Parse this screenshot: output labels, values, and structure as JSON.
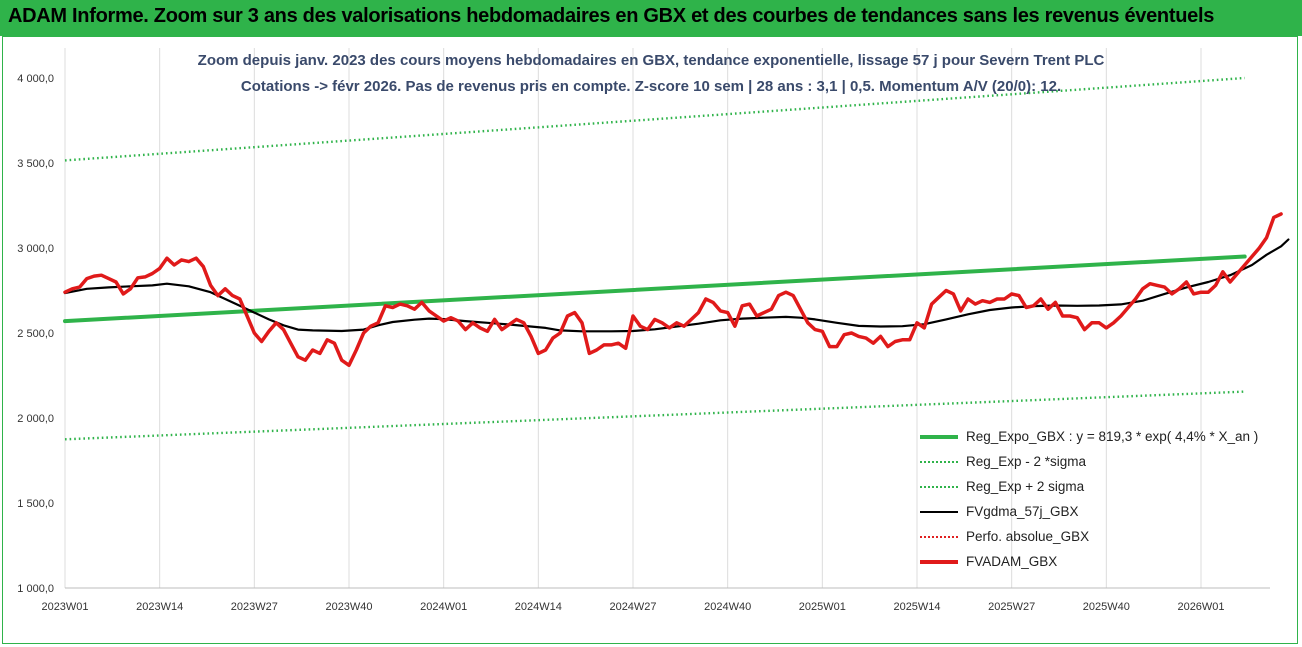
{
  "banner": {
    "title": "ADAM Informe. Zoom sur 3 ans des valorisations hebdomadaires en GBX et des courbes de tendances sans les revenus éventuels"
  },
  "chart_data": {
    "type": "line",
    "title": "Zoom depuis janv. 2023 des cours moyens hebdomadaires en GBX, tendance exponentielle, lissage 57 j pour Severn Trent PLC",
    "subtitle": "Cotations -> févr 2026. Pas de revenus pris en compte. Z-score 10 sem | 28 ans : 3,1 | 0,5. Momentum A/V (20/0): 12.",
    "xlabel": "",
    "ylabel": "",
    "ylim": [
      1000,
      4000
    ],
    "yticks": [
      "1 000,0",
      "1 500,0",
      "2 000,0",
      "2 500,0",
      "3 000,0",
      "3 500,0",
      "4 000,0"
    ],
    "xticks": [
      "2023W01",
      "2023W14",
      "2023W27",
      "2023W40",
      "2024W01",
      "2024W14",
      "2024W27",
      "2024W40",
      "2025W01",
      "2025W14",
      "2025W27",
      "2025W40",
      "2026W01"
    ],
    "grid": "vertical",
    "legend_position": "bottom-right",
    "series": [
      {
        "name": "Reg_Expo_GBX : y = 819,3 * exp( 4,4% *   X_an )",
        "color": "#2fb34a",
        "style": "solid-thick",
        "points": [
          [
            0,
            2570
          ],
          [
            162,
            2950
          ]
        ]
      },
      {
        "name": "Reg_Exp - 2 *sigma",
        "color": "#2fb34a",
        "style": "dotted",
        "points": [
          [
            0,
            1875
          ],
          [
            162,
            2155
          ]
        ]
      },
      {
        "name": "Reg_Exp + 2 sigma",
        "color": "#2fb34a",
        "style": "dotted",
        "points": [
          [
            0,
            3515
          ],
          [
            162,
            4000
          ]
        ]
      },
      {
        "name": "FVgdma_57j_GBX",
        "color": "#000000",
        "style": "solid",
        "points": [
          [
            0,
            2735
          ],
          [
            3,
            2760
          ],
          [
            6,
            2768
          ],
          [
            9,
            2775
          ],
          [
            12,
            2780
          ],
          [
            14,
            2790
          ],
          [
            17,
            2775
          ],
          [
            20,
            2740
          ],
          [
            22,
            2700
          ],
          [
            24,
            2660
          ],
          [
            26,
            2620
          ],
          [
            28,
            2580
          ],
          [
            30,
            2545
          ],
          [
            32,
            2520
          ],
          [
            34,
            2515
          ],
          [
            38,
            2512
          ],
          [
            41,
            2520
          ],
          [
            43,
            2545
          ],
          [
            45,
            2565
          ],
          [
            48,
            2578
          ],
          [
            50,
            2585
          ],
          [
            52,
            2582
          ],
          [
            55,
            2570
          ],
          [
            58,
            2560
          ],
          [
            61,
            2550
          ],
          [
            63,
            2542
          ],
          [
            66,
            2530
          ],
          [
            68,
            2515
          ],
          [
            71,
            2510
          ],
          [
            75,
            2510
          ],
          [
            78,
            2512
          ],
          [
            81,
            2522
          ],
          [
            84,
            2538
          ],
          [
            87,
            2555
          ],
          [
            90,
            2575
          ],
          [
            93,
            2585
          ],
          [
            96,
            2590
          ],
          [
            99,
            2595
          ],
          [
            101,
            2590
          ],
          [
            103,
            2580
          ],
          [
            106,
            2560
          ],
          [
            109,
            2542
          ],
          [
            112,
            2538
          ],
          [
            115,
            2540
          ],
          [
            118,
            2552
          ],
          [
            121,
            2580
          ],
          [
            124,
            2610
          ],
          [
            127,
            2635
          ],
          [
            130,
            2650
          ],
          [
            133,
            2658
          ],
          [
            136,
            2662
          ],
          [
            139,
            2660
          ],
          [
            142,
            2662
          ],
          [
            145,
            2668
          ],
          [
            148,
            2690
          ],
          [
            151,
            2730
          ],
          [
            154,
            2768
          ],
          [
            157,
            2800
          ],
          [
            160,
            2840
          ],
          [
            163,
            2900
          ],
          [
            165,
            2960
          ],
          [
            167,
            3010
          ],
          [
            168,
            3050
          ]
        ]
      },
      {
        "name": "Perfo. absolue_GBX",
        "color": "#e02020",
        "style": "dotted",
        "points": []
      },
      {
        "name": "FVADAM_GBX",
        "color": "#e01a1a",
        "style": "solid-thick",
        "points": [
          [
            0,
            2740
          ],
          [
            1,
            2760
          ],
          [
            2,
            2770
          ],
          [
            3,
            2820
          ],
          [
            4,
            2835
          ],
          [
            5,
            2840
          ],
          [
            6,
            2820
          ],
          [
            7,
            2800
          ],
          [
            8,
            2730
          ],
          [
            9,
            2760
          ],
          [
            10,
            2825
          ],
          [
            11,
            2830
          ],
          [
            12,
            2850
          ],
          [
            13,
            2880
          ],
          [
            14,
            2940
          ],
          [
            15,
            2900
          ],
          [
            16,
            2930
          ],
          [
            17,
            2920
          ],
          [
            18,
            2940
          ],
          [
            19,
            2890
          ],
          [
            20,
            2780
          ],
          [
            21,
            2720
          ],
          [
            22,
            2760
          ],
          [
            23,
            2720
          ],
          [
            24,
            2700
          ],
          [
            25,
            2600
          ],
          [
            26,
            2500
          ],
          [
            27,
            2450
          ],
          [
            28,
            2510
          ],
          [
            29,
            2560
          ],
          [
            30,
            2520
          ],
          [
            31,
            2440
          ],
          [
            32,
            2360
          ],
          [
            33,
            2340
          ],
          [
            34,
            2400
          ],
          [
            35,
            2380
          ],
          [
            36,
            2460
          ],
          [
            37,
            2440
          ],
          [
            38,
            2340
          ],
          [
            39,
            2310
          ],
          [
            40,
            2400
          ],
          [
            41,
            2500
          ],
          [
            42,
            2540
          ],
          [
            43,
            2560
          ],
          [
            44,
            2660
          ],
          [
            45,
            2650
          ],
          [
            46,
            2670
          ],
          [
            47,
            2660
          ],
          [
            48,
            2640
          ],
          [
            49,
            2680
          ],
          [
            50,
            2630
          ],
          [
            51,
            2600
          ],
          [
            52,
            2570
          ],
          [
            53,
            2590
          ],
          [
            54,
            2570
          ],
          [
            55,
            2520
          ],
          [
            56,
            2560
          ],
          [
            57,
            2530
          ],
          [
            58,
            2510
          ],
          [
            59,
            2580
          ],
          [
            60,
            2520
          ],
          [
            61,
            2550
          ],
          [
            62,
            2580
          ],
          [
            63,
            2560
          ],
          [
            64,
            2480
          ],
          [
            65,
            2380
          ],
          [
            66,
            2400
          ],
          [
            67,
            2470
          ],
          [
            68,
            2500
          ],
          [
            69,
            2600
          ],
          [
            70,
            2620
          ],
          [
            71,
            2560
          ],
          [
            72,
            2380
          ],
          [
            73,
            2400
          ],
          [
            74,
            2430
          ],
          [
            75,
            2430
          ],
          [
            76,
            2440
          ],
          [
            77,
            2410
          ],
          [
            78,
            2600
          ],
          [
            79,
            2540
          ],
          [
            80,
            2520
          ],
          [
            81,
            2580
          ],
          [
            82,
            2560
          ],
          [
            83,
            2530
          ],
          [
            84,
            2560
          ],
          [
            85,
            2540
          ],
          [
            86,
            2580
          ],
          [
            87,
            2620
          ],
          [
            88,
            2700
          ],
          [
            89,
            2680
          ],
          [
            90,
            2630
          ],
          [
            91,
            2620
          ],
          [
            92,
            2540
          ],
          [
            93,
            2660
          ],
          [
            94,
            2670
          ],
          [
            95,
            2600
          ],
          [
            96,
            2620
          ],
          [
            97,
            2640
          ],
          [
            98,
            2720
          ],
          [
            99,
            2740
          ],
          [
            100,
            2720
          ],
          [
            101,
            2640
          ],
          [
            102,
            2560
          ],
          [
            103,
            2520
          ],
          [
            104,
            2510
          ],
          [
            105,
            2420
          ],
          [
            106,
            2420
          ],
          [
            107,
            2490
          ],
          [
            108,
            2500
          ],
          [
            109,
            2480
          ],
          [
            110,
            2470
          ],
          [
            111,
            2440
          ],
          [
            112,
            2480
          ],
          [
            113,
            2420
          ],
          [
            114,
            2450
          ],
          [
            115,
            2460
          ],
          [
            116,
            2460
          ],
          [
            117,
            2560
          ],
          [
            118,
            2530
          ],
          [
            119,
            2670
          ],
          [
            120,
            2710
          ],
          [
            121,
            2750
          ],
          [
            122,
            2730
          ],
          [
            123,
            2630
          ],
          [
            124,
            2700
          ],
          [
            125,
            2670
          ],
          [
            126,
            2690
          ],
          [
            127,
            2680
          ],
          [
            128,
            2700
          ],
          [
            129,
            2700
          ],
          [
            130,
            2730
          ],
          [
            131,
            2720
          ],
          [
            132,
            2650
          ],
          [
            133,
            2660
          ],
          [
            134,
            2700
          ],
          [
            135,
            2640
          ],
          [
            136,
            2680
          ],
          [
            137,
            2600
          ],
          [
            138,
            2600
          ],
          [
            139,
            2590
          ],
          [
            140,
            2520
          ],
          [
            141,
            2560
          ],
          [
            142,
            2560
          ],
          [
            143,
            2530
          ],
          [
            144,
            2560
          ],
          [
            145,
            2600
          ],
          [
            146,
            2650
          ],
          [
            147,
            2700
          ],
          [
            148,
            2760
          ],
          [
            149,
            2790
          ],
          [
            150,
            2780
          ],
          [
            151,
            2770
          ],
          [
            152,
            2730
          ],
          [
            153,
            2760
          ],
          [
            154,
            2800
          ],
          [
            155,
            2730
          ],
          [
            156,
            2740
          ],
          [
            157,
            2740
          ],
          [
            158,
            2780
          ],
          [
            159,
            2860
          ],
          [
            160,
            2800
          ],
          [
            161,
            2850
          ],
          [
            162,
            2900
          ],
          [
            163,
            2950
          ],
          [
            164,
            3000
          ],
          [
            165,
            3060
          ],
          [
            166,
            3180
          ],
          [
            167,
            3200
          ]
        ]
      }
    ]
  }
}
